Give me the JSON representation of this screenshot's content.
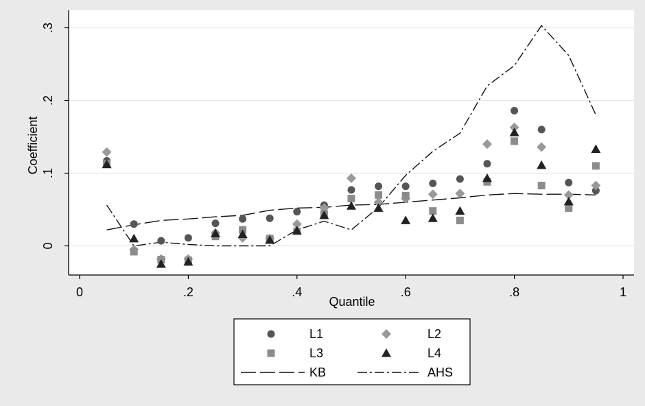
{
  "chart_data": {
    "type": "scatter",
    "xlabel": "Quantile",
    "ylabel": "Coefficient",
    "xlim": [
      0,
      1
    ],
    "ylim": [
      -0.04,
      0.31
    ],
    "x_ticks": [
      {
        "v": 0,
        "label": "0"
      },
      {
        "v": 0.2,
        "label": ".2"
      },
      {
        "v": 0.4,
        "label": ".4"
      },
      {
        "v": 0.6,
        "label": ".6"
      },
      {
        "v": 0.8,
        "label": ".8"
      },
      {
        "v": 1,
        "label": "1"
      }
    ],
    "y_ticks": [
      {
        "v": 0,
        "label": "0"
      },
      {
        "v": 0.1,
        "label": ".1"
      },
      {
        "v": 0.2,
        "label": ".2"
      },
      {
        "v": 0.3,
        "label": ".3"
      }
    ],
    "grid": "horizontal",
    "x": [
      0.05,
      0.1,
      0.15,
      0.2,
      0.25,
      0.3,
      0.35,
      0.4,
      0.45,
      0.5,
      0.55,
      0.6,
      0.65,
      0.7,
      0.75,
      0.8,
      0.85,
      0.9,
      0.95
    ],
    "series": [
      {
        "name": "L1",
        "marker": "circle",
        "color": "#555555",
        "values": [
          0.117,
          0.03,
          0.007,
          0.011,
          0.031,
          0.037,
          0.038,
          0.047,
          0.056,
          0.077,
          0.082,
          0.082,
          0.086,
          0.092,
          0.113,
          0.186,
          0.16,
          0.087,
          0.076
        ]
      },
      {
        "name": "L2",
        "marker": "diamond",
        "color": "#999999",
        "values": [
          0.129,
          -0.005,
          -0.018,
          -0.018,
          0.018,
          0.011,
          0.01,
          0.03,
          0.052,
          0.093,
          0.06,
          0.065,
          0.071,
          0.072,
          0.14,
          0.163,
          0.136,
          0.07,
          0.083
        ]
      },
      {
        "name": "L3",
        "marker": "square",
        "color": "#8c8c8c",
        "values": [
          0.113,
          -0.008,
          -0.019,
          -0.02,
          0.013,
          0.022,
          0.01,
          0.02,
          0.044,
          0.065,
          0.07,
          0.069,
          0.048,
          0.035,
          0.088,
          0.144,
          0.083,
          0.052,
          0.11
        ]
      },
      {
        "name": "L4",
        "marker": "triangle",
        "color": "#222222",
        "values": [
          0.112,
          0.01,
          -0.025,
          -0.022,
          0.017,
          0.016,
          0.008,
          0.021,
          0.042,
          0.055,
          0.052,
          0.035,
          0.038,
          0.048,
          0.093,
          0.156,
          0.111,
          0.061,
          0.133
        ]
      },
      {
        "name": "KB",
        "marker": "line",
        "dash": "long-dash",
        "color": "#111111",
        "values": [
          0.022,
          0.029,
          0.035,
          0.037,
          0.04,
          0.042,
          0.049,
          0.052,
          0.053,
          0.056,
          0.057,
          0.06,
          0.063,
          0.066,
          0.07,
          0.072,
          0.071,
          0.071,
          0.07
        ]
      },
      {
        "name": "AHS",
        "marker": "line",
        "dash": "dash-dot",
        "color": "#111111",
        "values": [
          0.056,
          0.0,
          0.005,
          0.002,
          0.0,
          0.0,
          0.0,
          0.022,
          0.034,
          0.022,
          0.053,
          0.097,
          0.13,
          0.155,
          0.22,
          0.248,
          0.303,
          0.262,
          0.18
        ]
      }
    ],
    "legend": {
      "placement": "bottom",
      "columns": 2,
      "order": [
        "L1",
        "L2",
        "L3",
        "L4",
        "KB",
        "AHS"
      ]
    }
  }
}
